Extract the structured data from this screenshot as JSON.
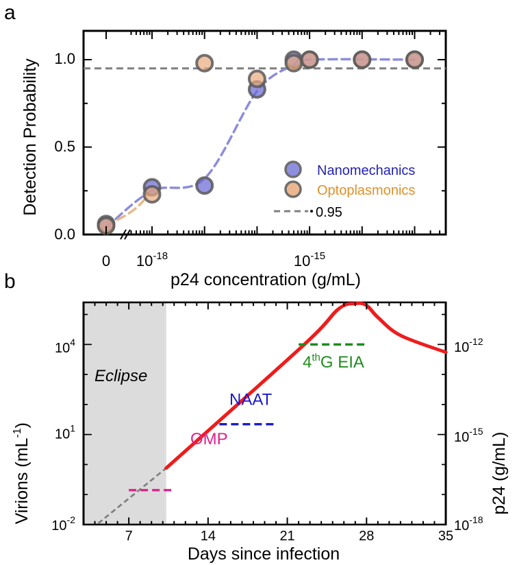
{
  "panel_labels": [
    "a",
    "b"
  ],
  "chart_data": [
    {
      "type": "scatter",
      "panel": "a",
      "xlabel": "p24 concentration (g/mL)",
      "ylabel": "Detection Probability",
      "x_scale": "log (broken axis at 0)",
      "xticks": [
        {
          "value": "0",
          "label": "0",
          "exp": ""
        },
        {
          "value": "1e-18",
          "label": "10",
          "exp": "-18"
        },
        {
          "value": "1e-15",
          "label": "10",
          "exp": "-15"
        }
      ],
      "ylim": [
        0,
        1.2
      ],
      "yticks": [
        {
          "value": 0,
          "label": "0.0"
        },
        {
          "value": 0.5,
          "label": "0.5"
        },
        {
          "value": 1,
          "label": "1.0"
        }
      ],
      "legend_position": "lower-right",
      "legend": [
        {
          "label": "Nanomechanics",
          "color": "#2323b4"
        },
        {
          "label": "Optoplasmonics",
          "color": "#e0902a"
        },
        {
          "label": "0.95",
          "color": "#808080"
        }
      ],
      "threshold": 0.95,
      "series": [
        {
          "name": "Nanomechanics",
          "marker_color": "#6a6ad6",
          "points": [
            {
              "x": "0",
              "y": 0.06
            },
            {
              "x": "1e-18",
              "y": 0.27
            },
            {
              "x": "1e-17",
              "y": 0.28
            },
            {
              "x": "1e-16",
              "y": 0.83
            },
            {
              "x": "5e-16",
              "y": 1.0
            },
            {
              "x": "1e-15",
              "y": 1.0
            },
            {
              "x": "1e-14",
              "y": 1.0
            },
            {
              "x": "1e-13",
              "y": 1.0
            }
          ]
        },
        {
          "name": "Optoplasmonics",
          "marker_color": "#e8aa7e",
          "points": [
            {
              "x": "0",
              "y": 0.05
            },
            {
              "x": "1e-18",
              "y": 0.23
            },
            {
              "x": "1e-17",
              "y": 0.98
            },
            {
              "x": "1e-16",
              "y": 0.89
            },
            {
              "x": "5e-16",
              "y": 0.98
            },
            {
              "x": "1e-15",
              "y": 1.0
            },
            {
              "x": "1e-14",
              "y": 1.0
            },
            {
              "x": "1e-13",
              "y": 1.0
            }
          ]
        }
      ],
      "fits": [
        {
          "name": "Nanomechanics",
          "color": "#8c8cdc",
          "points": [
            [
              "0",
              0.04
            ],
            [
              "1e-18",
              0.25
            ],
            [
              "1e-17",
              0.32
            ],
            [
              "1e-16",
              0.82
            ],
            [
              "5e-16",
              0.97
            ],
            [
              "1e-15",
              1.0
            ],
            [
              "1e-13",
              1.0
            ]
          ]
        },
        {
          "name": "Optoplasmonics",
          "color": "#e8b88a",
          "points": [
            [
              "0",
              0.05
            ],
            [
              "1e-18",
              0.26
            ],
            [
              "1e-17",
              0.98
            ],
            [
              "1e-16.5",
              1.05
            ],
            [
              "1e-16",
              1.0
            ],
            [
              "1e-15",
              0.99
            ],
            [
              "1e-13",
              1.0
            ]
          ]
        }
      ]
    },
    {
      "type": "line",
      "panel": "b",
      "xlabel": "Days since infection",
      "ylabel_left": "Virions (mL-1)",
      "ylabel_left_base": "Virions (mL",
      "ylabel_left_sup": "-1",
      "ylabel_left_end": ")",
      "ylabel_right": "p24 (g/mL)",
      "xlim": [
        3,
        35
      ],
      "xticks": [
        7,
        14,
        21,
        28,
        35
      ],
      "y_scale": "log",
      "ylim_virions": [
        0.01,
        500000
      ],
      "yticks_left": [
        {
          "value": 0.01,
          "label": "10",
          "exp": "-2"
        },
        {
          "value": 10,
          "label": "10",
          "exp": "1"
        },
        {
          "value": 10000,
          "label": "10",
          "exp": "4"
        }
      ],
      "yticks_right": [
        {
          "value": "1e-18",
          "label": "10",
          "exp": "-18"
        },
        {
          "value": "1e-15",
          "label": "10",
          "exp": "-15"
        },
        {
          "value": "1e-12",
          "label": "10",
          "exp": "-12"
        }
      ],
      "eclipse": {
        "label": "Eclipse",
        "x_range": [
          3,
          10.3
        ],
        "color": "#dcdcdc"
      },
      "viral_load": {
        "color": "#ee1c1c",
        "dashed_color": "#808080",
        "dashed_points": [
          [
            4.3,
            0.011
          ],
          [
            10.3,
            0.76
          ]
        ],
        "solid_points": [
          [
            10.3,
            0.76
          ],
          [
            22.5,
            10000
          ],
          [
            25.5,
            150000
          ],
          [
            27,
            250000
          ],
          [
            28,
            200000
          ],
          [
            29,
            80000
          ],
          [
            31,
            20000
          ],
          [
            35,
            5500
          ]
        ]
      },
      "tests": [
        {
          "label": "OMP",
          "label_pre": "",
          "label_sup": "",
          "label_post": "OMP",
          "color": "#e0208c",
          "x_start": 7,
          "x_end": 11,
          "virions": 0.14
        },
        {
          "label": "NAAT",
          "label_pre": "",
          "label_sup": "",
          "label_post": "NAAT",
          "color": "#1a1acc",
          "x_start": 15,
          "x_end": 20,
          "virions": 22
        },
        {
          "label": "4thG EIA",
          "label_pre": "4",
          "label_sup": "th",
          "label_post": "G EIA",
          "color": "#1e8c1e",
          "x_start": 22,
          "x_end": 28,
          "virions": 10000
        }
      ]
    }
  ]
}
